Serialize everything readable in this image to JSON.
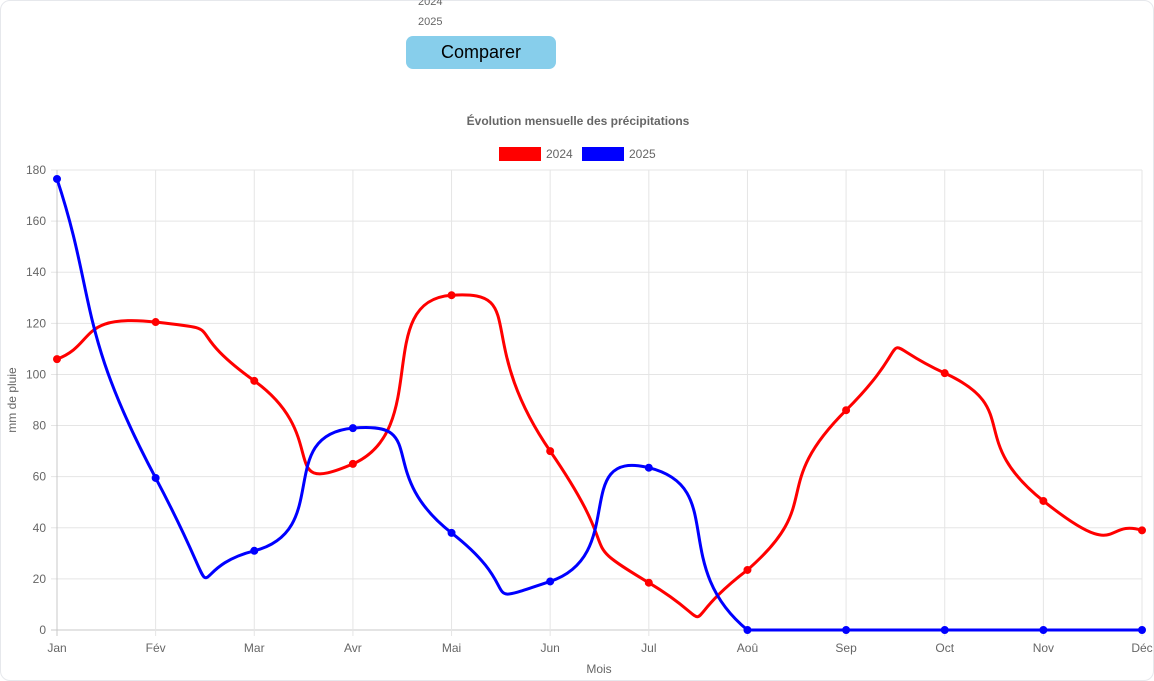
{
  "controls": {
    "year_options": [
      "2024",
      "2025"
    ],
    "compare_label": "Comparer"
  },
  "colors": {
    "series_2024": "#ff0000",
    "series_2025": "#0000ff",
    "button": "#87ceeb",
    "grid": "#e5e5e5",
    "text": "#666666"
  },
  "chart_data": {
    "type": "line",
    "title": "Évolution mensuelle des précipitations",
    "xlabel": "Mois",
    "ylabel": "mm de pluie",
    "categories": [
      "Jan",
      "Fév",
      "Mar",
      "Avr",
      "Mai",
      "Jun",
      "Jul",
      "Aoû",
      "Sep",
      "Oct",
      "Nov",
      "Déc"
    ],
    "ylim": [
      0,
      180
    ],
    "yticks": [
      0,
      20,
      40,
      60,
      80,
      100,
      120,
      140,
      160,
      180
    ],
    "grid": true,
    "legend_position": "top-center",
    "series": [
      {
        "name": "2024",
        "values": [
          106,
          120.5,
          97.5,
          65,
          131,
          70,
          18.5,
          23.5,
          86,
          100.5,
          50.5,
          39
        ]
      },
      {
        "name": "2025",
        "values": [
          176.5,
          59.5,
          31,
          79,
          38,
          19,
          63.5,
          0,
          0,
          0,
          0,
          0
        ]
      }
    ]
  }
}
